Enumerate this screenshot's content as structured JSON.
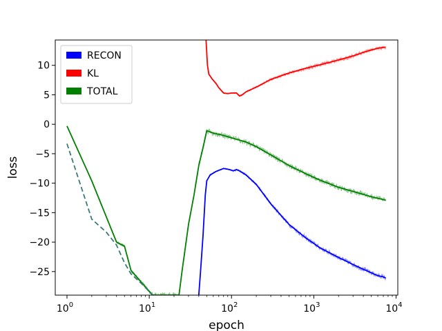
{
  "chart_data": {
    "type": "line",
    "title": "",
    "xlabel": "epoch",
    "ylabel": "loss",
    "xscale": "log",
    "xlim": [
      0.72,
      10500
    ],
    "ylim": [
      -29,
      14.3
    ],
    "x_ticks": [
      {
        "value": 1,
        "base": "10",
        "exp": "0"
      },
      {
        "value": 10,
        "base": "10",
        "exp": "1"
      },
      {
        "value": 100,
        "base": "10",
        "exp": "2"
      },
      {
        "value": 1000,
        "base": "10",
        "exp": "3"
      },
      {
        "value": 10000,
        "base": "10",
        "exp": "4"
      }
    ],
    "y_ticks": [
      10,
      5,
      0,
      -5,
      -10,
      -15,
      -20,
      -25
    ],
    "legend": {
      "position": "top-left",
      "entries": [
        {
          "label": "RECON",
          "color": "#0000ff"
        },
        {
          "label": "KL",
          "color": "#ff0000"
        },
        {
          "label": "TOTAL",
          "color": "#008000"
        }
      ]
    },
    "series": [
      {
        "name": "RECON",
        "color": "#0000ff",
        "noise": 0.4,
        "points": [
          [
            40,
            -29
          ],
          [
            42,
            -25
          ],
          [
            45,
            -19
          ],
          [
            48,
            -12
          ],
          [
            50,
            -9.6
          ],
          [
            55,
            -8.6
          ],
          [
            65,
            -8
          ],
          [
            80,
            -7.5
          ],
          [
            95,
            -7.7
          ],
          [
            105,
            -7.9
          ],
          [
            115,
            -7.7
          ],
          [
            125,
            -7.9
          ],
          [
            150,
            -8.6
          ],
          [
            200,
            -10.2
          ],
          [
            300,
            -13.5
          ],
          [
            500,
            -17
          ],
          [
            800,
            -19.3
          ],
          [
            1200,
            -21
          ],
          [
            2000,
            -22.6
          ],
          [
            3000,
            -23.8
          ],
          [
            4000,
            -24.6
          ],
          [
            5000,
            -25.2
          ],
          [
            6000,
            -25.7
          ],
          [
            7000,
            -25.9
          ],
          [
            7500,
            -26.1
          ]
        ]
      },
      {
        "name": "KL",
        "color": "#ff0000",
        "noise": 0.35,
        "points": [
          [
            49,
            14.3
          ],
          [
            51,
            10
          ],
          [
            53,
            8.5
          ],
          [
            58,
            7.7
          ],
          [
            65,
            6.9
          ],
          [
            70,
            6.2
          ],
          [
            80,
            5.3
          ],
          [
            90,
            5.2
          ],
          [
            100,
            5.3
          ],
          [
            115,
            5.3
          ],
          [
            125,
            4.8
          ],
          [
            135,
            5
          ],
          [
            150,
            5.5
          ],
          [
            200,
            6.3
          ],
          [
            300,
            7.6
          ],
          [
            500,
            8.7
          ],
          [
            800,
            9.5
          ],
          [
            1200,
            10.1
          ],
          [
            2000,
            10.9
          ],
          [
            3000,
            11.6
          ],
          [
            4000,
            12.2
          ],
          [
            5000,
            12.6
          ],
          [
            6000,
            12.9
          ],
          [
            7500,
            13.1
          ]
        ]
      },
      {
        "name": "TOTAL",
        "color": "#008000",
        "noise": 0.45,
        "points": [
          [
            1,
            -0.3
          ],
          [
            2,
            -9.6
          ],
          [
            4,
            -20
          ],
          [
            5,
            -20.7
          ],
          [
            6,
            -24.8
          ],
          [
            8,
            -26.8
          ],
          [
            11,
            -29
          ],
          [
            23,
            -29
          ],
          [
            25,
            -25
          ],
          [
            30,
            -17
          ],
          [
            35,
            -12
          ],
          [
            40,
            -7
          ],
          [
            45,
            -4
          ],
          [
            50,
            -1.1
          ],
          [
            60,
            -1.5
          ],
          [
            80,
            -1.9
          ],
          [
            100,
            -2.3
          ],
          [
            150,
            -3
          ],
          [
            200,
            -3.8
          ],
          [
            300,
            -5.2
          ],
          [
            500,
            -7
          ],
          [
            800,
            -8.4
          ],
          [
            1200,
            -9.5
          ],
          [
            2000,
            -10.7
          ],
          [
            3000,
            -11.4
          ],
          [
            5000,
            -12.3
          ],
          [
            7500,
            -12.9
          ]
        ]
      },
      {
        "name": "",
        "color": "#3a7a74",
        "dashed": true,
        "noise": 0,
        "points": [
          [
            1,
            -3.3
          ],
          [
            2,
            -16.1
          ],
          [
            3,
            -18.3
          ],
          [
            4,
            -20.5
          ],
          [
            5,
            -23.5
          ],
          [
            6,
            -25.4
          ],
          [
            8,
            -27
          ],
          [
            11,
            -29
          ]
        ]
      }
    ]
  }
}
